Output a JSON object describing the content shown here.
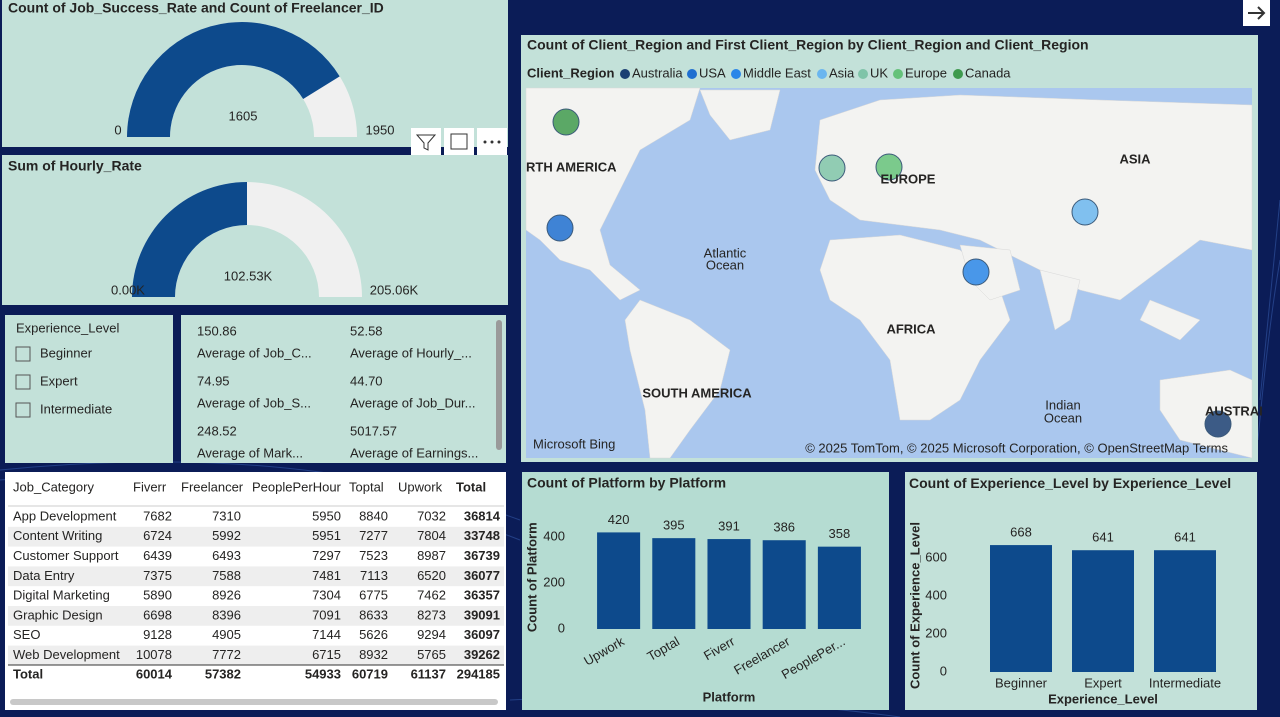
{
  "chart_data": [
    {
      "type": "gauge",
      "title": "Count of Job_Success_Rate and Count of Freelancer_ID",
      "value": 1605,
      "min": 0,
      "max": 1950,
      "color": "#0d4a8c",
      "track_color": "#f0f0f0"
    },
    {
      "type": "gauge",
      "title": "Sum of Hourly_Rate",
      "value": 102530,
      "value_label": "102.53K",
      "min": {
        "value": 0,
        "label": "0.00K"
      },
      "max": {
        "value": 205060,
        "label": "205.06K"
      },
      "color": "#0d4a8c",
      "track_color": "#f0f0f0"
    },
    {
      "type": "map",
      "title": "Count of Client_Region and First Client_Region by Client_Region and Client_Region",
      "legend_title": "Client_Region",
      "series": [
        {
          "name": "Australia",
          "color": "#1b3f73"
        },
        {
          "name": "USA",
          "color": "#1f6fd0"
        },
        {
          "name": "Middle East",
          "color": "#2a86e8"
        },
        {
          "name": "Asia",
          "color": "#6bb6ef"
        },
        {
          "name": "UK",
          "color": "#7fc4a8"
        },
        {
          "name": "Europe",
          "color": "#65c27a"
        },
        {
          "name": "Canada",
          "color": "#3f9a4e"
        }
      ],
      "labels": [
        "RTH AMERICA",
        "EUROPE",
        "ASIA",
        "Atlantic",
        "Ocean",
        "AFRICA",
        "SOUTH AMERICA",
        "Indian",
        "Ocean",
        "AUSTRAI"
      ],
      "attribution": "© 2025 TomTom, © 2025 Microsoft Corporation, © OpenStreetMap  Terms",
      "provider": "Microsoft Bing"
    },
    {
      "type": "bar",
      "title": "Count of Platform by Platform",
      "categories": [
        "Upwork",
        "Toptal",
        "Fiverr",
        "Freelancer",
        "PeoplePer..."
      ],
      "values": [
        420,
        395,
        391,
        386,
        358
      ],
      "color": "#0d4a8c",
      "ylim": [
        0,
        450
      ],
      "yticks": [
        0,
        200,
        400
      ],
      "ylabel": "Count of Platform",
      "xlabel": "Platform"
    },
    {
      "type": "bar",
      "title": "Count of Experience_Level by Experience_Level",
      "categories": [
        "Beginner",
        "Expert",
        "Intermediate"
      ],
      "values": [
        668,
        641,
        641
      ],
      "color": "#0d4a8c",
      "ylim": [
        0,
        700
      ],
      "yticks": [
        0,
        200,
        400,
        600
      ],
      "ylabel": "Count of Experience_Level",
      "xlabel": "Experience_Level"
    }
  ],
  "slicer": {
    "title": "Experience_Level",
    "options": [
      "Beginner",
      "Expert",
      "Intermediate"
    ]
  },
  "cards": [
    {
      "value": "150.86",
      "label": "Average of Job_C..."
    },
    {
      "value": "52.58",
      "label": "Average of Hourly_..."
    },
    {
      "value": "74.95",
      "label": "Average of Job_S..."
    },
    {
      "value": "44.70",
      "label": "Average of Job_Dur..."
    },
    {
      "value": "248.52",
      "label": "Average of Mark..."
    },
    {
      "value": "5017.57",
      "label": "Average of Earnings..."
    }
  ],
  "table": {
    "columns": [
      "Job_Category",
      "Fiverr",
      "Freelancer",
      "PeoplePerHour",
      "Toptal",
      "Upwork",
      "Total"
    ],
    "rows": [
      [
        "App Development",
        7682,
        7310,
        5950,
        8840,
        7032,
        36814
      ],
      [
        "Content Writing",
        6724,
        5992,
        5951,
        7277,
        7804,
        33748
      ],
      [
        "Customer Support",
        6439,
        6493,
        7297,
        7523,
        8987,
        36739
      ],
      [
        "Data Entry",
        7375,
        7588,
        7481,
        7113,
        6520,
        36077
      ],
      [
        "Digital Marketing",
        5890,
        8926,
        7304,
        6775,
        7462,
        36357
      ],
      [
        "Graphic Design",
        6698,
        8396,
        7091,
        8633,
        8273,
        39091
      ],
      [
        "SEO",
        9128,
        4905,
        7144,
        5626,
        9294,
        36097
      ],
      [
        "Web Development",
        10078,
        7772,
        6715,
        8932,
        5765,
        39262
      ]
    ],
    "totals": [
      "Total",
      60014,
      57382,
      54933,
      60719,
      61137,
      294185
    ]
  }
}
